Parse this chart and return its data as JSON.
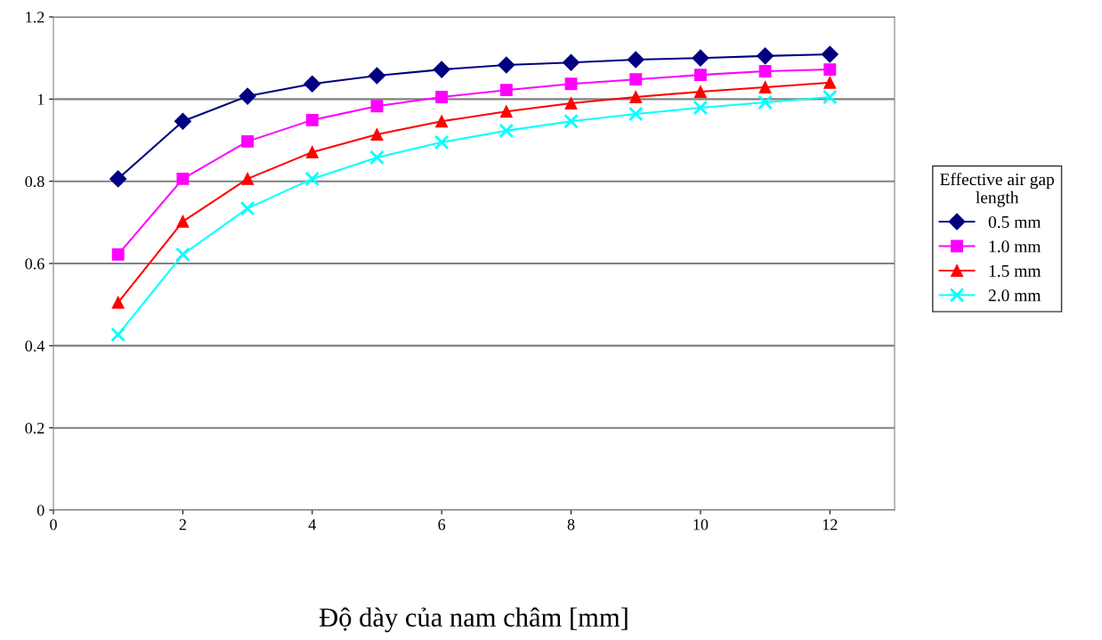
{
  "chart_data": {
    "type": "line",
    "xlabel": "Độ dày của nam châm [mm]",
    "legend_title": "Effective air gap\nlength",
    "x": [
      1,
      2,
      3,
      4,
      5,
      6,
      7,
      8,
      9,
      10,
      11,
      12
    ],
    "series": [
      {
        "name": "0.5 mm",
        "color": "#000080",
        "marker": "diamond",
        "values": [
          0.806,
          0.946,
          1.007,
          1.037,
          1.057,
          1.072,
          1.083,
          1.089,
          1.096,
          1.1,
          1.105,
          1.109
        ]
      },
      {
        "name": "1.0 mm",
        "color": "#ff00ff",
        "marker": "square",
        "values": [
          0.622,
          0.806,
          0.897,
          0.949,
          0.983,
          1.005,
          1.022,
          1.037,
          1.048,
          1.059,
          1.068,
          1.072
        ]
      },
      {
        "name": "1.5 mm",
        "color": "#ff0000",
        "marker": "triangle",
        "values": [
          0.505,
          0.702,
          0.806,
          0.871,
          0.914,
          0.946,
          0.97,
          0.99,
          1.005,
          1.018,
          1.029,
          1.04
        ]
      },
      {
        "name": "2.0 mm",
        "color": "#00ffff",
        "marker": "cross",
        "values": [
          0.427,
          0.622,
          0.734,
          0.806,
          0.858,
          0.895,
          0.923,
          0.946,
          0.964,
          0.979,
          0.992,
          1.005
        ]
      }
    ],
    "xlim": [
      0,
      13
    ],
    "xticks": [
      0,
      2,
      4,
      6,
      8,
      10,
      12
    ],
    "ylim": [
      0,
      1.2
    ],
    "yticks": [
      0,
      0.2,
      0.4,
      0.6,
      0.8,
      1,
      1.2
    ],
    "grid": "y",
    "legend": "right",
    "line_style": "solid"
  }
}
